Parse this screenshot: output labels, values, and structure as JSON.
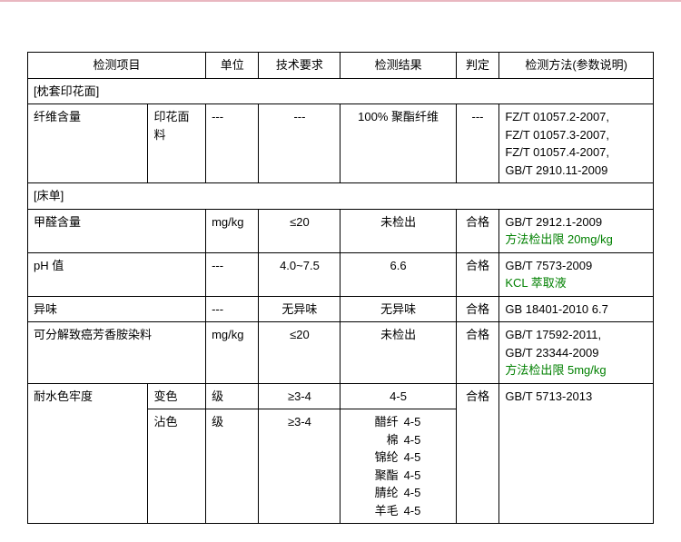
{
  "header": {
    "item": "检测项目",
    "unit": "单位",
    "req": "技术要求",
    "result": "检测结果",
    "judge": "判定",
    "method": "检测方法(参数说明)"
  },
  "sections": {
    "s1": {
      "title": "[枕套印花面]"
    },
    "s2": {
      "title": "[床单]"
    }
  },
  "rows": {
    "fiber": {
      "item": "纤维含量",
      "sub": "印花面料",
      "unit": "---",
      "req": "---",
      "result": "100%  聚酯纤维",
      "judge": "---",
      "method": "FZ/T 01057.2-2007,\nFZ/T 01057.3-2007,\nFZ/T 01057.4-2007,\nGB/T 2910.11-2009"
    },
    "formaldehyde": {
      "item": "甲醛含量",
      "unit": "mg/kg",
      "req": "≤20",
      "result": "未检出",
      "judge": "合格",
      "method_line1": "GB/T 2912.1-2009",
      "method_line2": "方法检出限 20mg/kg"
    },
    "ph": {
      "item": "pH 值",
      "unit": "---",
      "req": "4.0~7.5",
      "result": "6.6",
      "judge": "合格",
      "method_line1": "GB/T 7573-2009",
      "method_line2": "KCL 萃取液"
    },
    "odor": {
      "item": "异味",
      "unit": "---",
      "req": "无异味",
      "result": "无异味",
      "judge": "合格",
      "method": "GB 18401-2010 6.7"
    },
    "amine": {
      "item": "可分解致癌芳香胺染料",
      "unit": "mg/kg",
      "req": "≤20",
      "result": "未检出",
      "judge": "合格",
      "method_line1": "GB/T 17592-2011,",
      "method_line2": "GB/T 23344-2009",
      "method_line3": "方法检出限 5mg/kg"
    },
    "water_fast": {
      "item": "耐水色牢度",
      "sub1": "变色",
      "sub2": "沾色",
      "unit1": "级",
      "unit2": "级",
      "req1": "≥3-4",
      "req2": "≥3-4",
      "result1": "4-5",
      "judge": "合格",
      "method": "GB/T 5713-2013",
      "stain": {
        "r1_l": "醋纤",
        "r1_v": "4-5",
        "r2_l": "棉",
        "r2_v": "4-5",
        "r3_l": "锦纶",
        "r3_v": "4-5",
        "r4_l": "聚酯",
        "r4_v": "4-5",
        "r5_l": "腈纶",
        "r5_v": "4-5",
        "r6_l": "羊毛",
        "r6_v": "4-5"
      }
    }
  },
  "colors": {
    "border": "#000000",
    "text": "#000000",
    "green": "#008000",
    "topline": "#e9b7c0",
    "bg": "#ffffff"
  },
  "font": {
    "family": "Microsoft YaHei / SimSun",
    "size_pt": 10
  }
}
